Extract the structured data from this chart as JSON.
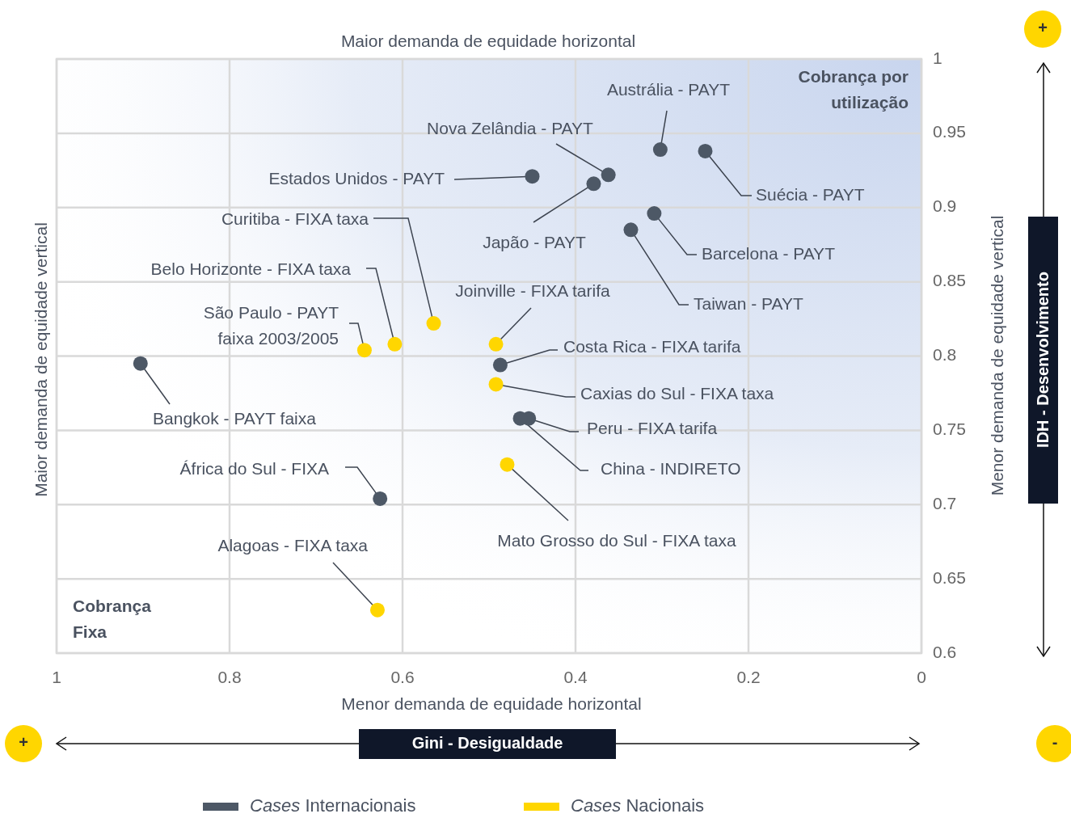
{
  "chart_data": {
    "type": "scatter",
    "x2label": "Maior demanda de equidade horizontal",
    "xlabel": "Menor demanda de equidade horizontal",
    "ylabel": "Maior demanda de equidade vertical",
    "y2label": "Menor demanda de equidade vertical",
    "xlim": [
      1,
      0
    ],
    "xticks": [
      1,
      0.8,
      0.6,
      0.4,
      0.2,
      0
    ],
    "ylim": [
      0.6,
      1
    ],
    "yticks": [
      0.6,
      0.65,
      0.7,
      0.75,
      0.8,
      0.85,
      0.9,
      0.95,
      1
    ],
    "grid": true,
    "legend": "bottom",
    "marker": "circle",
    "series": [
      {
        "name": "Cases Internacionais",
        "color": "#4d5866",
        "x": [
          0.302,
          0.25,
          0.362,
          0.379,
          0.45,
          0.309,
          0.336,
          0.487,
          0.454,
          0.464,
          0.626,
          0.903
        ],
        "values": [
          0.939,
          0.938,
          0.922,
          0.916,
          0.921,
          0.896,
          0.885,
          0.794,
          0.758,
          0.758,
          0.704,
          0.795
        ]
      },
      {
        "name": "Cases Nacionais",
        "color": "#ffd600",
        "x": [
          0.564,
          0.609,
          0.644,
          0.492,
          0.492,
          0.479,
          0.629
        ],
        "values": [
          0.822,
          0.808,
          0.804,
          0.808,
          0.781,
          0.727,
          0.629
        ]
      }
    ],
    "annotations": [
      {
        "text": "Austrália - PAYT",
        "x": 0.302,
        "y": 0.939
      },
      {
        "text": "Suécia - PAYT",
        "x": 0.25,
        "y": 0.938
      },
      {
        "text": "Nova Zelândia - PAYT",
        "x": 0.362,
        "y": 0.922
      },
      {
        "text": "Japão - PAYT",
        "x": 0.379,
        "y": 0.916
      },
      {
        "text": "Estados Unidos - PAYT",
        "x": 0.45,
        "y": 0.921
      },
      {
        "text": "Barcelona - PAYT",
        "x": 0.309,
        "y": 0.896
      },
      {
        "text": "Taiwan - PAYT",
        "x": 0.336,
        "y": 0.885
      },
      {
        "text": "Curitiba - FIXA taxa",
        "x": 0.564,
        "y": 0.822
      },
      {
        "text": "Belo Horizonte - FIXA taxa",
        "x": 0.609,
        "y": 0.808
      },
      {
        "text": "São Paulo - PAYT\nfaixa 2003/2005",
        "x": 0.644,
        "y": 0.804
      },
      {
        "text": "Joinville - FIXA tarifa",
        "x": 0.492,
        "y": 0.808
      },
      {
        "text": "Costa Rica - FIXA tarifa",
        "x": 0.487,
        "y": 0.794
      },
      {
        "text": "Caxias do Sul - FIXA taxa",
        "x": 0.492,
        "y": 0.781
      },
      {
        "text": "Peru - FIXA tarifa",
        "x": 0.454,
        "y": 0.758
      },
      {
        "text": "China - INDIRETO",
        "x": 0.464,
        "y": 0.758
      },
      {
        "text": "Mato Grosso do Sul - FIXA taxa",
        "x": 0.479,
        "y": 0.727
      },
      {
        "text": "África do Sul - FIXA",
        "x": 0.626,
        "y": 0.704
      },
      {
        "text": "Alagoas - FIXA taxa",
        "x": 0.629,
        "y": 0.629
      },
      {
        "text": "Bangkok - PAYT faixa",
        "x": 0.903,
        "y": 0.795
      },
      "Cobrança por\nutilização",
      "Cobrança\nFixa",
      "IDH - Desenvolvimento",
      "Gini - Desigualdade",
      "+",
      "+",
      "-"
    ]
  }
}
